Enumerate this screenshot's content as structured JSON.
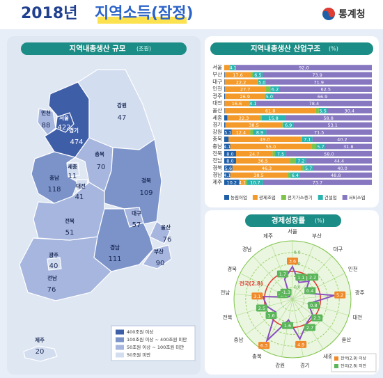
{
  "header": {
    "title_year": "2018년",
    "title_main": "지역소득(잠정)",
    "logo": "통계청"
  },
  "map": {
    "title": "지역내총생산 규모",
    "unit": "(조원)",
    "regions": [
      {
        "name": "서울",
        "value": 422,
        "color": "#3f5ea8"
      },
      {
        "name": "인천",
        "value": 88,
        "color": "#a6b6de"
      },
      {
        "name": "경기",
        "value": 474,
        "color": "#3f5ea8"
      },
      {
        "name": "강원",
        "value": 47,
        "color": "#d3ddf0"
      },
      {
        "name": "충북",
        "value": 70,
        "color": "#a6b6de"
      },
      {
        "name": "세종",
        "value": 11,
        "color": "#d3ddf0"
      },
      {
        "name": "충남",
        "value": 118,
        "color": "#7b93c9"
      },
      {
        "name": "대전",
        "value": 41,
        "color": "#d3ddf0"
      },
      {
        "name": "경북",
        "value": 109,
        "color": "#7b93c9"
      },
      {
        "name": "대구",
        "value": 57,
        "color": "#a6b6de"
      },
      {
        "name": "전북",
        "value": 51,
        "color": "#a6b6de"
      },
      {
        "name": "울산",
        "value": 76,
        "color": "#a6b6de"
      },
      {
        "name": "경남",
        "value": 111,
        "color": "#7b93c9"
      },
      {
        "name": "부산",
        "value": 90,
        "color": "#a6b6de"
      },
      {
        "name": "광주",
        "value": 40,
        "color": "#d3ddf0"
      },
      {
        "name": "전남",
        "value": 76,
        "color": "#a6b6de"
      },
      {
        "name": "제주",
        "value": 20,
        "color": "#d3ddf0"
      }
    ],
    "legend": [
      {
        "label": "400조원 이상",
        "color": "#3f5ea8"
      },
      {
        "label": "100조원 이상 ~ 400조원 미만",
        "color": "#7b93c9"
      },
      {
        "label": "50조원 이상 ~ 100조원 미만",
        "color": "#a6b6de"
      },
      {
        "label": "50조원 미만",
        "color": "#d3ddf0"
      }
    ]
  },
  "chart_data": [
    {
      "type": "bar",
      "orientation": "horizontal",
      "stacked": true,
      "title": "지역내총생산 산업구조",
      "unit": "(%)",
      "xlim": [
        0,
        100
      ],
      "categories": [
        "서울",
        "부산",
        "대구",
        "인천",
        "광주",
        "대전",
        "울산",
        "세종",
        "경기",
        "강원",
        "충북",
        "충남",
        "전북",
        "전남",
        "경북",
        "경남",
        "제주"
      ],
      "series": [
        {
          "name": "농림어업",
          "color": "#1f5fa8",
          "values": [
            0.0,
            0.4,
            0.3,
            0.4,
            0.6,
            0.2,
            0.3,
            2.1,
            0.8,
            5.1,
            3.0,
            4.1,
            8.0,
            8.0,
            5.6,
            4.1,
            10.2
          ],
          "value_labels": [
            null,
            null,
            null,
            null,
            null,
            null,
            null,
            null,
            null,
            "5.1",
            null,
            "4.1",
            "8.0",
            "8.0",
            "5.6",
            "4.1",
            "10.2"
          ]
        },
        {
          "name": "광제조업",
          "color": "#f39a2b",
          "values": [
            3.5,
            17.6,
            22.2,
            27.7,
            26.9,
            16.6,
            61.8,
            22.3,
            38.5,
            12.4,
            49.0,
            55.0,
            24.7,
            36.5,
            46.3,
            38.5,
            4.1
          ],
          "value_labels": [
            null,
            "17.6",
            "22.2",
            "27.7",
            "26.9",
            "16.6",
            "61.8",
            "22.3",
            "38.5",
            "12.4",
            "49.0",
            "55.0",
            "24.7",
            "36.5",
            "46.3",
            "38.5",
            "4.1"
          ]
        },
        {
          "name": "전기가스증기",
          "color": "#7ec34a",
          "values": [
            0.4,
            1.6,
            0.6,
            3.2,
            0.6,
            0.7,
            2.0,
            1.0,
            0.7,
            2.1,
            0.7,
            3.4,
            1.8,
            3.9,
            2.4,
            2.2,
            1.3
          ],
          "value_labels": [
            null,
            null,
            null,
            null,
            null,
            null,
            null,
            null,
            null,
            null,
            null,
            null,
            null,
            null,
            null,
            null,
            null
          ]
        },
        {
          "name": "건설업",
          "color": "#2ab3b0",
          "values": [
            4.1,
            6.5,
            5.0,
            6.2,
            5.0,
            4.1,
            5.5,
            15.8,
            6.9,
            8.9,
            7.1,
            5.7,
            7.5,
            7.2,
            5.7,
            6.4,
            10.7
          ],
          "value_labels": [
            "4.1",
            "6.5",
            "5.0",
            "6.2",
            "5.0",
            "4.1",
            "5.5",
            "15.8",
            "6.9",
            "8.9",
            "7.1",
            "5.7",
            "7.5",
            "7.2",
            "5.7",
            "6.4",
            "10.7"
          ]
        },
        {
          "name": "서비스업",
          "color": "#8677c0",
          "values": [
            92.0,
            73.9,
            71.9,
            62.5,
            66.9,
            78.4,
            30.4,
            58.8,
            53.1,
            71.5,
            40.2,
            31.8,
            58.0,
            44.4,
            40.0,
            48.8,
            73.7
          ],
          "value_labels": [
            "92.0",
            "73.9",
            "71.9",
            "62.5",
            "66.9",
            "78.4",
            "30.4",
            "58.8",
            "53.1",
            "71.5",
            "40.2",
            "31.8",
            "58.0",
            "44.4",
            "40.0",
            "48.8",
            "73.7"
          ]
        }
      ]
    },
    {
      "type": "radar",
      "title": "경제성장률",
      "unit": "(%)",
      "rlim": [
        -2,
        8
      ],
      "rticks": [
        {
          "value": 0,
          "label": "0.0"
        },
        {
          "value": 2,
          "label": "2.0"
        },
        {
          "value": 4,
          "label": "4.0"
        },
        {
          "value": 6,
          "label": "6.0"
        }
      ],
      "categories": [
        "서울",
        "부산",
        "대구",
        "인천",
        "광주",
        "대전",
        "울산",
        "세종",
        "경기",
        "강원",
        "충북",
        "충남",
        "전북",
        "전남",
        "경북",
        "경남",
        "제주"
      ],
      "series": [
        {
          "color": "#8a4fc0",
          "values": [
            3.6,
            1.1,
            2.2,
            0.4,
            5.2,
            0.8,
            2.3,
            2.7,
            4.9,
            1.6,
            6.3,
            1.6,
            2.5,
            3.1,
            -1.1,
            -1.3,
            1.7
          ],
          "value_labels": [
            "3.6",
            "1.1",
            "2.2",
            "0.4",
            "5.2",
            "0.8",
            "2.3",
            "2.7",
            "4.9",
            "1.6",
            "6.3",
            "1.6",
            "2.5",
            "3.1",
            "-1.1",
            "-1.3",
            "1.7"
          ]
        }
      ],
      "national": {
        "label": "전국(2.8)",
        "value": 2.8,
        "color": "#e03c31"
      },
      "above_color": "#f0892a",
      "below_color": "#5bb55a",
      "legend": [
        "전국(2.8) 이상",
        "전국(2.8) 미만"
      ]
    }
  ]
}
